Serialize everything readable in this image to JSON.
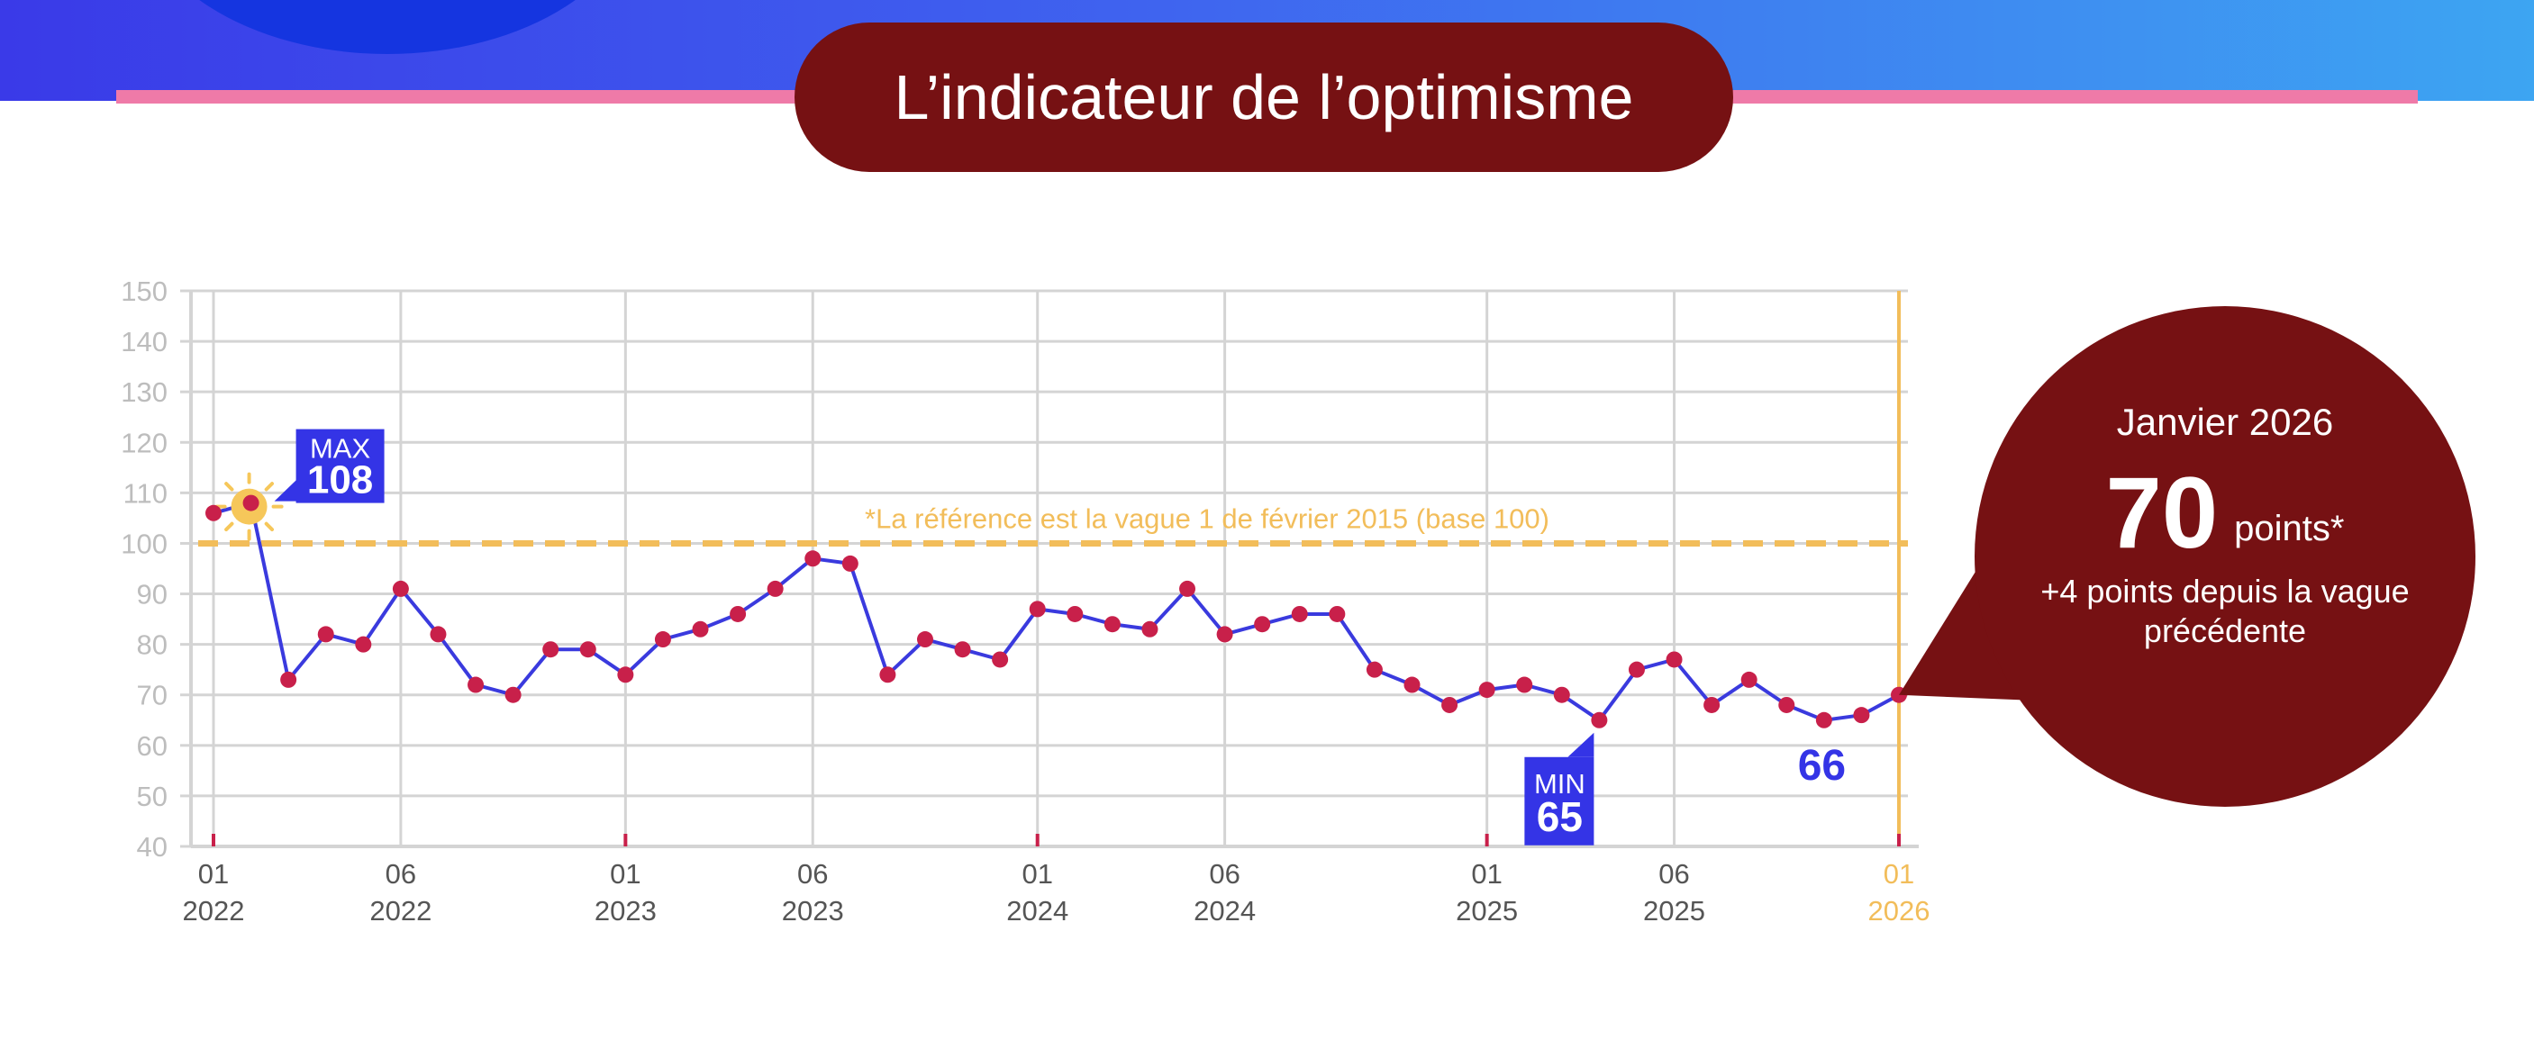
{
  "title": "L’indicateur de l’optimisme",
  "chart_data": {
    "type": "line",
    "ylim": [
      40,
      150
    ],
    "y_ticks": [
      "40",
      "50",
      "60",
      "70",
      "80",
      "90",
      "100",
      "110",
      "120",
      "130",
      "140",
      "150"
    ],
    "x_tick_labels": [
      {
        "month": "01",
        "year": "2022",
        "index": 0
      },
      {
        "month": "06",
        "year": "2022",
        "index": 5
      },
      {
        "month": "01",
        "year": "2023",
        "index": 11
      },
      {
        "month": "06",
        "year": "2023",
        "index": 16
      },
      {
        "month": "01",
        "year": "2024",
        "index": 22
      },
      {
        "month": "06",
        "year": "2024",
        "index": 27
      },
      {
        "month": "01",
        "year": "2025",
        "index": 34
      },
      {
        "month": "06",
        "year": "2025",
        "index": 39
      },
      {
        "month": "01",
        "year": "2026",
        "index": 45
      }
    ],
    "values": [
      106,
      108,
      73,
      82,
      80,
      91,
      82,
      72,
      70,
      79,
      79,
      74,
      81,
      83,
      86,
      91,
      97,
      96,
      74,
      81,
      79,
      77,
      87,
      86,
      84,
      83,
      91,
      82,
      84,
      86,
      86,
      75,
      72,
      68,
      71,
      72,
      70,
      65,
      75,
      77,
      68,
      73,
      68,
      65,
      66,
      70
    ],
    "reference": {
      "value": 100,
      "label": "*La référence est la vague 1 de février 2015 (base 100)"
    },
    "max_label": {
      "tag": "MAX",
      "value": "108",
      "index": 1
    },
    "min_label": {
      "tag": "MIN",
      "value": "65",
      "index": 37
    },
    "prev_label": {
      "value": "66",
      "index": 44
    },
    "grid": true,
    "colors": {
      "line": "#3a3ade",
      "point": "#c8204a",
      "grid": "#d4d4d4",
      "axis_text": "#bdbdbd",
      "x_text": "#555555",
      "reference": "#f2bd5a",
      "label_bg": "#3434e6",
      "sun": "#f6c75a"
    }
  },
  "callout": {
    "date": "Janvier 2026",
    "points_value": "70",
    "points_unit": "points*",
    "delta_line1": "+4 points depuis la vague",
    "delta_line2": "précédente",
    "color": "#761113"
  }
}
